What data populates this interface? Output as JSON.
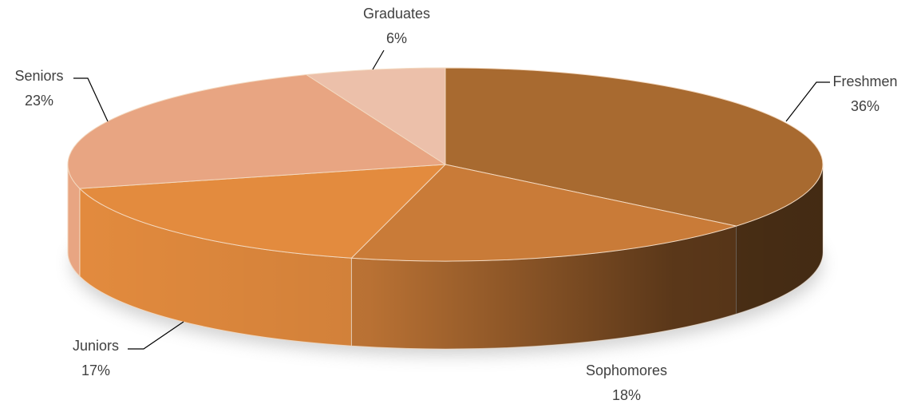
{
  "chart_data": {
    "type": "pie",
    "categories": [
      "Freshmen",
      "Sophomores",
      "Juniors",
      "Seniors",
      "Graduates"
    ],
    "values": [
      36,
      18,
      17,
      23,
      6
    ],
    "value_labels": [
      "36%",
      "18%",
      "17%",
      "23%",
      "6%"
    ],
    "colors": [
      "#a86a30",
      "#c97b38",
      "#e38b3e",
      "#e8a582",
      "#ecc0aa"
    ]
  }
}
